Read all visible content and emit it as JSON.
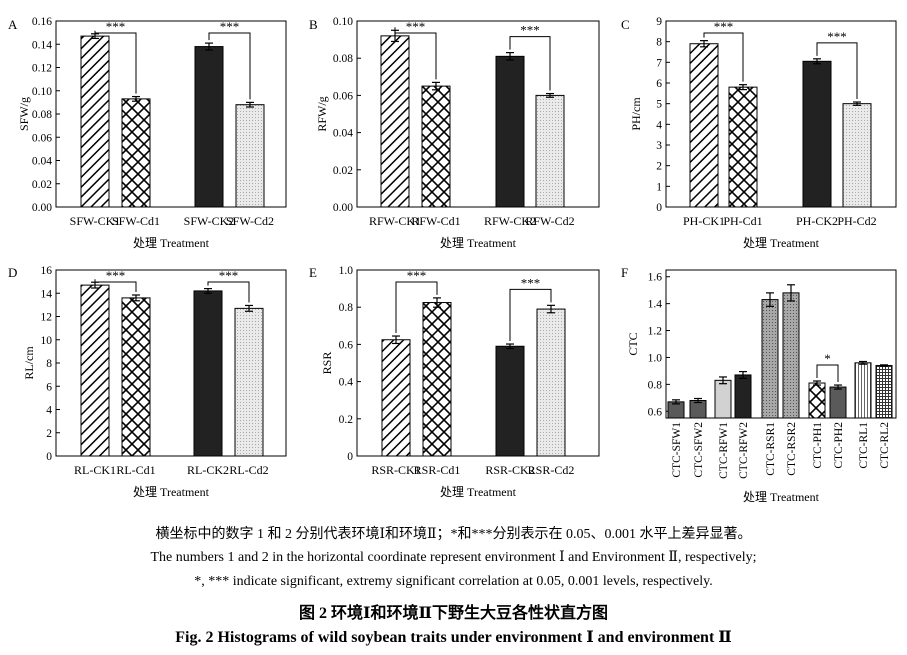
{
  "chart_data": [
    {
      "type": "bar",
      "panel_label": "A",
      "categories": [
        "SFW-CK1",
        "SFW-Cd1",
        "SFW-CK2",
        "SFW-Cd2"
      ],
      "values": [
        0.147,
        0.093,
        0.138,
        0.088
      ],
      "errors": [
        0.002,
        0.002,
        0.003,
        0.002
      ],
      "patterns": [
        "diag",
        "cross",
        "black",
        "dots"
      ],
      "ylabel": "SFW/g",
      "xlabel": "处理 Treatment",
      "ylim": [
        0,
        0.16
      ],
      "yticks": [
        "0.00",
        "0.02",
        "0.04",
        "0.06",
        "0.08",
        "0.10",
        "0.12",
        "0.14",
        "0.16"
      ],
      "significance": [
        {
          "pair": [
            0,
            1
          ],
          "text": "***"
        },
        {
          "pair": [
            2,
            3
          ],
          "text": "***"
        }
      ]
    },
    {
      "type": "bar",
      "panel_label": "B",
      "categories": [
        "RFW-CK1",
        "RFW-Cd1",
        "RFW-CK2",
        "RFW-Cd2"
      ],
      "values": [
        0.092,
        0.065,
        0.081,
        0.06
      ],
      "errors": [
        0.003,
        0.002,
        0.002,
        0.001
      ],
      "patterns": [
        "diag",
        "cross",
        "black",
        "dots"
      ],
      "ylabel": "RFW/g",
      "xlabel": "处理 Treatment",
      "ylim": [
        0,
        0.1
      ],
      "yticks": [
        "0.00",
        "0.02",
        "0.04",
        "0.06",
        "0.08",
        "0.10"
      ],
      "significance": [
        {
          "pair": [
            0,
            1
          ],
          "text": "***"
        },
        {
          "pair": [
            2,
            3
          ],
          "text": "***"
        }
      ]
    },
    {
      "type": "bar",
      "panel_label": "C",
      "categories": [
        "PH-CK1",
        "PH-Cd1",
        "PH-CK2",
        "PH-Cd2"
      ],
      "values": [
        7.9,
        5.8,
        7.05,
        5.0
      ],
      "errors": [
        0.15,
        0.12,
        0.12,
        0.08
      ],
      "patterns": [
        "diag",
        "cross",
        "black",
        "dots"
      ],
      "ylabel": "PH/cm",
      "xlabel": "处理 Treatment",
      "ylim": [
        0,
        9
      ],
      "yticks": [
        "0",
        "1",
        "2",
        "3",
        "4",
        "5",
        "6",
        "7",
        "8",
        "9"
      ],
      "significance": [
        {
          "pair": [
            0,
            1
          ],
          "text": "***"
        },
        {
          "pair": [
            2,
            3
          ],
          "text": "***"
        }
      ]
    },
    {
      "type": "bar",
      "panel_label": "D",
      "categories": [
        "RL-CK1",
        "RL-Cd1",
        "RL-CK2",
        "RL-Cd2"
      ],
      "values": [
        14.7,
        13.6,
        14.2,
        12.7
      ],
      "errors": [
        0.25,
        0.25,
        0.2,
        0.25
      ],
      "patterns": [
        "diag",
        "cross",
        "black",
        "dots"
      ],
      "ylabel": "RL/cm",
      "xlabel": "处理 Treatment",
      "ylim": [
        0,
        16
      ],
      "yticks": [
        "0",
        "2",
        "4",
        "6",
        "8",
        "10",
        "12",
        "14",
        "16"
      ],
      "significance": [
        {
          "pair": [
            0,
            1
          ],
          "text": "***"
        },
        {
          "pair": [
            2,
            3
          ],
          "text": "***"
        }
      ]
    },
    {
      "type": "bar",
      "panel_label": "E",
      "categories": [
        "RSR-CK1",
        "RSR-Cd1",
        "RSR-CK2",
        "RSR-Cd2"
      ],
      "values": [
        0.625,
        0.825,
        0.59,
        0.79
      ],
      "errors": [
        0.02,
        0.025,
        0.012,
        0.02
      ],
      "patterns": [
        "diag",
        "cross",
        "black",
        "dots"
      ],
      "ylabel": "RSR",
      "xlabel": "处理 Treatment",
      "ylim": [
        0,
        1.0
      ],
      "yticks": [
        "0",
        "0.2",
        "0.4",
        "0.6",
        "0.8",
        "1.0"
      ],
      "significance": [
        {
          "pair": [
            0,
            1
          ],
          "text": "***"
        },
        {
          "pair": [
            2,
            3
          ],
          "text": "***"
        }
      ]
    },
    {
      "type": "bar",
      "panel_label": "F",
      "categories": [
        "CTC-SFW1",
        "CTC-SFW2",
        "CTC-RFW1",
        "CTC-RFW2",
        "CTC-RSR1",
        "CTC-RSR2",
        "CTC-PH1",
        "CTC-PH2",
        "CTC-RL1",
        "CTC-RL2"
      ],
      "values": [
        0.67,
        0.68,
        0.83,
        0.87,
        1.43,
        1.48,
        0.81,
        0.78,
        0.96,
        0.94
      ],
      "errors": [
        0.015,
        0.015,
        0.025,
        0.025,
        0.05,
        0.06,
        0.015,
        0.015,
        0.01,
        0.005
      ],
      "patterns": [
        "dgray",
        "dgray",
        "lgray",
        "black",
        "mdots",
        "mdots",
        "cross",
        "dgray",
        "vstripe",
        "grid"
      ],
      "ylabel": "CTC",
      "xlabel": "处理 Treatment",
      "ylim": [
        0.55,
        1.65
      ],
      "yticks": [
        "0.6",
        "0.8",
        "1.0",
        "1.2",
        "1.4",
        "1.6"
      ],
      "significance": [
        {
          "pair": [
            6,
            7
          ],
          "text": "*"
        }
      ]
    }
  ],
  "caption": {
    "line1": "横坐标中的数字 1 和 2 分别代表环境Ⅰ和环境Ⅱ；*和***分别表示在 0.05、0.001 水平上差异显著。",
    "line2": "The numbers 1 and 2 in the horizontal coordinate represent environment Ⅰ and Environment Ⅱ, respectively;",
    "line3": "*, *** indicate significant, extremy significant correlation at 0.05, 0.001 levels, respectively.",
    "title_cn": "图 2 环境Ⅰ和环境Ⅱ下野生大豆各性状直方图",
    "title_en": "Fig. 2 Histograms of wild soybean traits under environment Ⅰ and environment Ⅱ"
  }
}
